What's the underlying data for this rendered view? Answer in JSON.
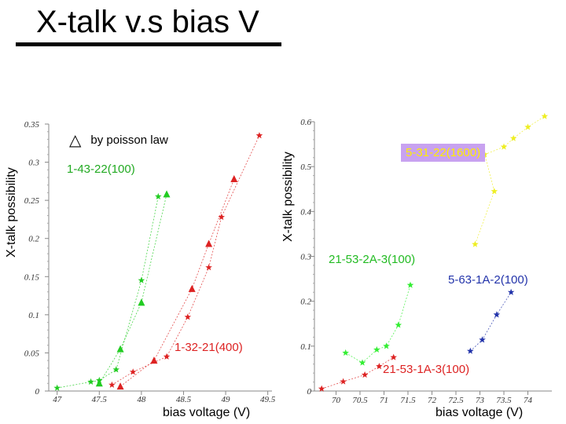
{
  "slide": {
    "title": "X-talk v.s bias V"
  },
  "chart_data": [
    {
      "type": "scatter",
      "ylabel": "X-talk possibility",
      "xlabel": "bias voltage (V)",
      "xlim": [
        46.9,
        49.55
      ],
      "ylim": [
        0,
        0.35
      ],
      "xticks": [
        "47",
        "47.5",
        "48",
        "48.5",
        "49",
        "49.5"
      ],
      "yticks": [
        "0",
        "0.05",
        "0.1",
        "0.15",
        "0.2",
        "0.25",
        "0.3",
        "0.35"
      ],
      "legend_note": {
        "symbol": "△",
        "text": "by poisson law"
      },
      "series": [
        {
          "name": "1-43-22(100)",
          "marker": "star",
          "color": "#22cc22",
          "x": [
            47.0,
            47.4,
            47.5,
            47.7,
            48.0,
            48.2
          ],
          "y": [
            0.004,
            0.012,
            0.014,
            0.028,
            0.145,
            0.255
          ]
        },
        {
          "name": "1-43-22(100) poisson",
          "marker": "triangle",
          "color": "#22cc22",
          "x": [
            47.5,
            47.75,
            48.0,
            48.3
          ],
          "y": [
            0.01,
            0.055,
            0.116,
            0.258
          ]
        },
        {
          "name": "1-32-21(400)",
          "marker": "star",
          "color": "#dd2222",
          "x": [
            47.65,
            47.9,
            48.3,
            48.55,
            48.8,
            48.95,
            49.4
          ],
          "y": [
            0.008,
            0.025,
            0.045,
            0.097,
            0.162,
            0.228,
            0.335
          ]
        },
        {
          "name": "1-32-21(400) poisson",
          "marker": "triangle",
          "color": "#dd2222",
          "x": [
            47.75,
            48.15,
            48.6,
            48.8,
            49.1
          ],
          "y": [
            0.006,
            0.04,
            0.134,
            0.193,
            0.278
          ]
        }
      ]
    },
    {
      "type": "scatter",
      "ylabel": "X-talk possibility",
      "xlabel": "bias voltage (V)",
      "xlim": [
        69.55,
        74.5
      ],
      "ylim": [
        0,
        0.6
      ],
      "xticks": [
        "70",
        "70.5",
        "71",
        "71.5",
        "72",
        "72.5",
        "73",
        "73.5",
        "74"
      ],
      "yticks": [
        "0",
        "0.1",
        "0.2",
        "0.3",
        "0.4",
        "0.5",
        "0.6"
      ],
      "series": [
        {
          "name": "5-31-22(1600)",
          "marker": "star",
          "color": "#eeee22",
          "x": [
            72.9,
            73.3,
            73.1,
            73.5,
            73.7,
            74.0,
            74.35
          ],
          "y": [
            0.327,
            0.445,
            0.527,
            0.544,
            0.563,
            0.588,
            0.612
          ]
        },
        {
          "name": "21-53-2A-3(100)",
          "marker": "star",
          "color": "#33ee33",
          "x": [
            70.2,
            70.55,
            70.85,
            71.05,
            71.3,
            71.55
          ],
          "y": [
            0.085,
            0.063,
            0.092,
            0.1,
            0.147,
            0.236
          ]
        },
        {
          "name": "5-63-1A-2(100)",
          "marker": "star",
          "color": "#2233aa",
          "x": [
            72.8,
            73.05,
            73.35,
            73.65
          ],
          "y": [
            0.089,
            0.114,
            0.17,
            0.22
          ]
        },
        {
          "name": "21-53-1A-3(100)",
          "marker": "star",
          "color": "#dd2222",
          "x": [
            69.7,
            70.15,
            70.6,
            70.9,
            71.2
          ],
          "y": [
            0.005,
            0.021,
            0.036,
            0.055,
            0.075
          ]
        }
      ]
    }
  ]
}
